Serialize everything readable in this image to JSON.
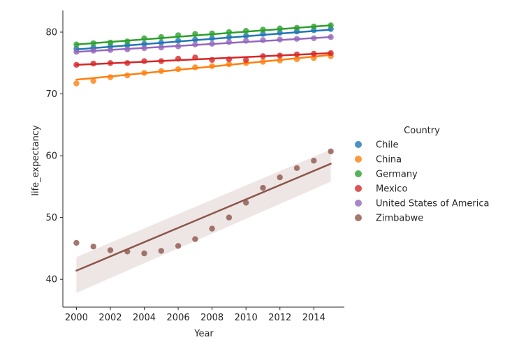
{
  "chart_data": {
    "type": "scatter",
    "xlabel": "Year",
    "ylabel": "life_expectancy",
    "xlim": [
      1999.2,
      2015.8
    ],
    "ylim": [
      35.5,
      83.5
    ],
    "xticks": [
      2000,
      2002,
      2004,
      2006,
      2008,
      2010,
      2012,
      2014
    ],
    "yticks": [
      40,
      50,
      60,
      70,
      80
    ],
    "grid": false,
    "legend_title": "Country",
    "legend_position": "right",
    "x": [
      2000,
      2001,
      2002,
      2003,
      2004,
      2005,
      2006,
      2007,
      2008,
      2009,
      2010,
      2011,
      2012,
      2013,
      2014,
      2015
    ],
    "series": [
      {
        "name": "Chile",
        "color": "#1f77b4",
        "values": [
          77.3,
          77.5,
          77.7,
          77.9,
          78.1,
          78.3,
          78.6,
          78.8,
          79.0,
          79.2,
          79.4,
          79.7,
          79.9,
          80.1,
          80.3,
          80.5
        ],
        "trend": [
          77.2,
          80.4
        ]
      },
      {
        "name": "China",
        "color": "#ff7f0e",
        "values": [
          71.7,
          72.1,
          72.7,
          73.0,
          73.4,
          73.7,
          74.0,
          74.3,
          74.5,
          74.8,
          75.0,
          75.2,
          75.4,
          75.6,
          75.8,
          76.1
        ],
        "trend": [
          72.3,
          76.3
        ]
      },
      {
        "name": "Germany",
        "color": "#2ca02c",
        "values": [
          78.0,
          78.2,
          78.3,
          78.5,
          79.0,
          79.2,
          79.5,
          79.7,
          79.8,
          80.0,
          80.2,
          80.4,
          80.6,
          80.7,
          80.9,
          81.1
        ],
        "trend": [
          78.0,
          81.1
        ]
      },
      {
        "name": "Mexico",
        "color": "#d62728",
        "values": [
          74.7,
          74.9,
          75.0,
          75.0,
          75.3,
          75.3,
          75.7,
          75.9,
          75.5,
          75.6,
          75.5,
          76.1,
          76.2,
          76.4,
          76.5,
          76.6
        ],
        "trend": [
          74.7,
          76.6
        ]
      },
      {
        "name": "United States of America",
        "color": "#9467bd",
        "values": [
          76.8,
          77.0,
          77.1,
          77.2,
          77.4,
          77.5,
          77.7,
          78.0,
          78.1,
          78.4,
          78.6,
          78.7,
          78.8,
          78.9,
          79.0,
          79.2
        ],
        "trend": [
          76.8,
          79.2
        ]
      },
      {
        "name": "Zimbabwe",
        "color": "#8c564b",
        "values": [
          45.9,
          45.3,
          44.7,
          44.5,
          44.2,
          44.6,
          45.4,
          46.5,
          48.2,
          50.0,
          52.4,
          54.8,
          56.5,
          58.0,
          59.2,
          60.7
        ],
        "trend": [
          41.4,
          58.7
        ],
        "ci_low": [
          37.8,
          55.8
        ],
        "ci_high": [
          43.6,
          61.0
        ]
      }
    ]
  }
}
